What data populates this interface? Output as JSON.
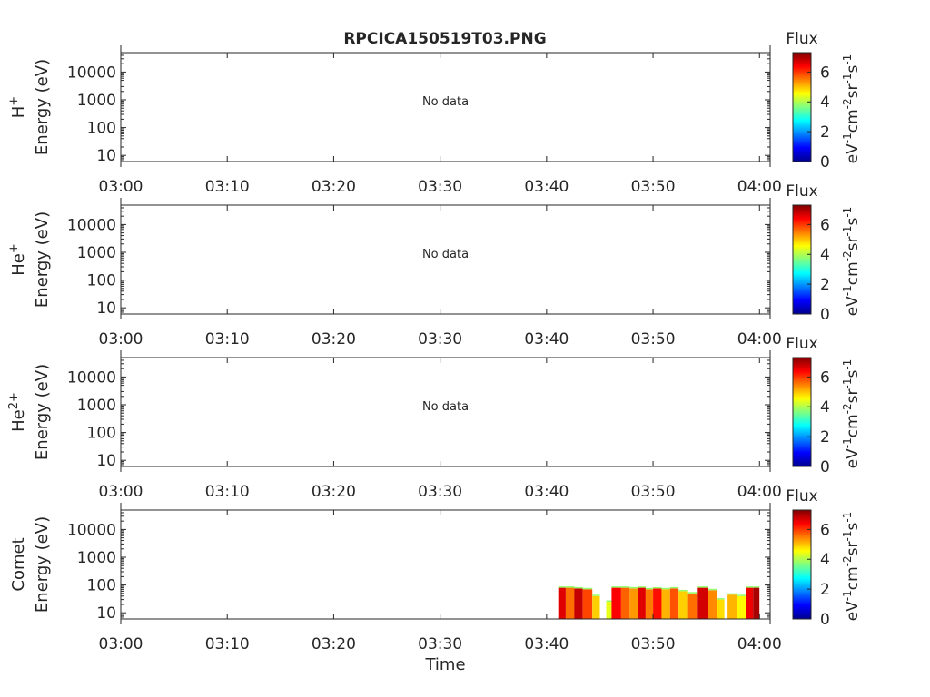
{
  "title": "RPCICA150519T03.PNG",
  "colorbar": {
    "label": "Flux",
    "unit_base": [
      "eV",
      "cm",
      "sr",
      "s"
    ],
    "unit_exponents": [
      "-1",
      "-2",
      "-1",
      "-1"
    ],
    "ticks": [
      "0",
      "2",
      "4",
      "6"
    ],
    "range": [
      0,
      7.3
    ],
    "colormap": "jet"
  },
  "chart_data": [
    {
      "type": "heatmap",
      "species_base": "H",
      "species_sup": "+",
      "ylabel": "Energy (eV)",
      "yscale": "log",
      "ylim": [
        6,
        50000
      ],
      "yticks": [
        "10",
        "100",
        "1000",
        "10000"
      ],
      "xticks": [
        "03:00",
        "03:10",
        "03:20",
        "03:30",
        "03:40",
        "03:50",
        "04:00"
      ],
      "xlim_minutes": [
        0,
        61
      ],
      "annotation": "No data",
      "spans": []
    },
    {
      "type": "heatmap",
      "species_base": "He",
      "species_sup": "+",
      "ylabel": "Energy (eV)",
      "yscale": "log",
      "ylim": [
        6,
        50000
      ],
      "yticks": [
        "10",
        "100",
        "1000",
        "10000"
      ],
      "xticks": [
        "03:00",
        "03:10",
        "03:20",
        "03:30",
        "03:40",
        "03:50",
        "04:00"
      ],
      "xlim_minutes": [
        0,
        61
      ],
      "annotation": "No data",
      "spans": []
    },
    {
      "type": "heatmap",
      "species_base": "He",
      "species_sup": "2+",
      "ylabel": "Energy (eV)",
      "yscale": "log",
      "ylim": [
        6,
        50000
      ],
      "yticks": [
        "10",
        "100",
        "1000",
        "10000"
      ],
      "xticks": [
        "03:00",
        "03:10",
        "03:20",
        "03:30",
        "03:40",
        "03:50",
        "04:00"
      ],
      "xlim_minutes": [
        0,
        61
      ],
      "annotation": "No data",
      "spans": []
    },
    {
      "type": "heatmap",
      "species_base": "Comet",
      "species_sup": "",
      "ylabel": "Energy (eV)",
      "yscale": "log",
      "ylim": [
        6,
        50000
      ],
      "yticks": [
        "10",
        "100",
        "1000",
        "10000"
      ],
      "xticks": [
        "03:00",
        "03:10",
        "03:20",
        "03:30",
        "03:40",
        "03:50",
        "04:00"
      ],
      "xlim_minutes": [
        0,
        61
      ],
      "annotation": "",
      "xlabel": "Time",
      "spans": [
        {
          "t0": 41.1,
          "t1": 41.8,
          "emax": 80,
          "flux": 6.6
        },
        {
          "t0": 41.8,
          "t1": 42.6,
          "emax": 80,
          "flux": 5.6
        },
        {
          "t0": 42.6,
          "t1": 43.4,
          "emax": 75,
          "flux": 6.8
        },
        {
          "t0": 43.4,
          "t1": 44.3,
          "emax": 70,
          "flux": 5.9
        },
        {
          "t0": 44.3,
          "t1": 45.0,
          "emax": 40,
          "flux": 4.9
        },
        {
          "t0": 45.6,
          "t1": 46.1,
          "emax": 25,
          "flux": 4.4
        },
        {
          "t0": 46.1,
          "t1": 47.0,
          "emax": 80,
          "flux": 6.4
        },
        {
          "t0": 47.0,
          "t1": 47.8,
          "emax": 80,
          "flux": 5.7
        },
        {
          "t0": 47.8,
          "t1": 48.6,
          "emax": 75,
          "flux": 5.3
        },
        {
          "t0": 48.6,
          "t1": 49.3,
          "emax": 80,
          "flux": 6.6
        },
        {
          "t0": 49.3,
          "t1": 50.0,
          "emax": 70,
          "flux": 5.5
        },
        {
          "t0": 50.0,
          "t1": 50.8,
          "emax": 75,
          "flux": 6.3
        },
        {
          "t0": 50.8,
          "t1": 51.6,
          "emax": 70,
          "flux": 5.1
        },
        {
          "t0": 51.6,
          "t1": 52.4,
          "emax": 75,
          "flux": 5.8
        },
        {
          "t0": 52.4,
          "t1": 53.2,
          "emax": 60,
          "flux": 4.9
        },
        {
          "t0": 53.2,
          "t1": 54.2,
          "emax": 50,
          "flux": 5.6
        },
        {
          "t0": 54.2,
          "t1": 55.2,
          "emax": 80,
          "flux": 6.7
        },
        {
          "t0": 55.2,
          "t1": 56.0,
          "emax": 65,
          "flux": 5.4
        },
        {
          "t0": 56.0,
          "t1": 56.7,
          "emax": 30,
          "flux": 4.8
        },
        {
          "t0": 57.0,
          "t1": 57.9,
          "emax": 45,
          "flux": 5.1
        },
        {
          "t0": 57.9,
          "t1": 58.7,
          "emax": 40,
          "flux": 4.6
        },
        {
          "t0": 58.7,
          "t1": 59.4,
          "emax": 80,
          "flux": 6.5
        },
        {
          "t0": 59.4,
          "t1": 60.0,
          "emax": 80,
          "flux": 7.0
        }
      ]
    }
  ]
}
